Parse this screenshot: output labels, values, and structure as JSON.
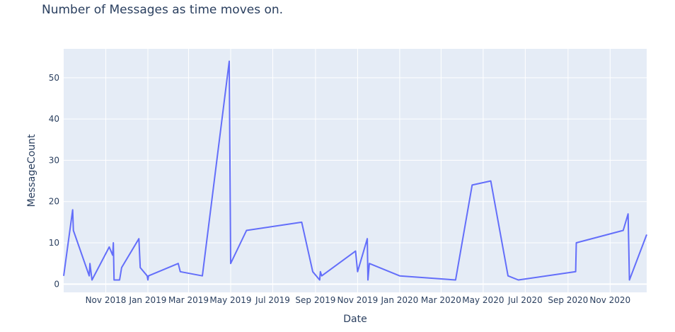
{
  "chart_data": {
    "type": "line",
    "title": "Number of Messages as time moves on.",
    "xlabel": "Date",
    "ylabel": "MessageCount",
    "ylim": [
      -2,
      57
    ],
    "xlim": [
      "2018-09-01",
      "2020-12-24"
    ],
    "y_ticks": [
      0,
      10,
      20,
      30,
      40,
      50
    ],
    "x_ticks": [
      {
        "date": "2018-11-01",
        "label": "Nov 2018"
      },
      {
        "date": "2019-01-01",
        "label": "Jan 2019"
      },
      {
        "date": "2019-03-01",
        "label": "Mar 2019"
      },
      {
        "date": "2019-05-01",
        "label": "May 2019"
      },
      {
        "date": "2019-07-01",
        "label": "Jul 2019"
      },
      {
        "date": "2019-09-01",
        "label": "Sep 2019"
      },
      {
        "date": "2019-11-01",
        "label": "Nov 2019"
      },
      {
        "date": "2020-01-01",
        "label": "Jan 2020"
      },
      {
        "date": "2020-03-01",
        "label": "Mar 2020"
      },
      {
        "date": "2020-05-01",
        "label": "May 2020"
      },
      {
        "date": "2020-07-01",
        "label": "Jul 2020"
      },
      {
        "date": "2020-09-01",
        "label": "Sep 2020"
      },
      {
        "date": "2020-11-01",
        "label": "Nov 2020"
      }
    ],
    "grid": true,
    "series": [
      {
        "color": "#636efa",
        "points": [
          [
            "2018-09-01",
            2
          ],
          [
            "2018-09-14",
            18
          ],
          [
            "2018-09-15",
            13
          ],
          [
            "2018-10-08",
            2
          ],
          [
            "2018-10-09",
            5
          ],
          [
            "2018-10-12",
            1
          ],
          [
            "2018-11-06",
            9
          ],
          [
            "2018-11-11",
            7
          ],
          [
            "2018-11-12",
            10
          ],
          [
            "2018-11-13",
            1
          ],
          [
            "2018-11-21",
            1
          ],
          [
            "2018-11-24",
            4
          ],
          [
            "2018-12-19",
            11
          ],
          [
            "2018-12-21",
            4
          ],
          [
            "2018-12-31",
            2
          ],
          [
            "2019-01-01",
            1
          ],
          [
            "2019-01-02",
            2
          ],
          [
            "2019-02-14",
            5
          ],
          [
            "2019-02-17",
            3
          ],
          [
            "2019-03-21",
            2
          ],
          [
            "2019-04-29",
            54
          ],
          [
            "2019-05-01",
            5
          ],
          [
            "2019-05-24",
            13
          ],
          [
            "2019-08-12",
            15
          ],
          [
            "2019-08-28",
            3
          ],
          [
            "2019-09-07",
            1
          ],
          [
            "2019-09-08",
            3
          ],
          [
            "2019-09-10",
            2
          ],
          [
            "2019-10-29",
            8
          ],
          [
            "2019-11-01",
            3
          ],
          [
            "2019-11-15",
            11
          ],
          [
            "2019-11-16",
            1
          ],
          [
            "2019-11-18",
            5
          ],
          [
            "2020-01-01",
            2
          ],
          [
            "2020-03-22",
            1
          ],
          [
            "2020-04-15",
            24
          ],
          [
            "2020-05-12",
            25
          ],
          [
            "2020-06-06",
            2
          ],
          [
            "2020-06-21",
            1
          ],
          [
            "2020-09-12",
            3
          ],
          [
            "2020-09-13",
            10
          ],
          [
            "2020-11-20",
            13
          ],
          [
            "2020-11-27",
            17
          ],
          [
            "2020-11-29",
            1
          ],
          [
            "2020-12-24",
            12
          ]
        ]
      }
    ]
  }
}
